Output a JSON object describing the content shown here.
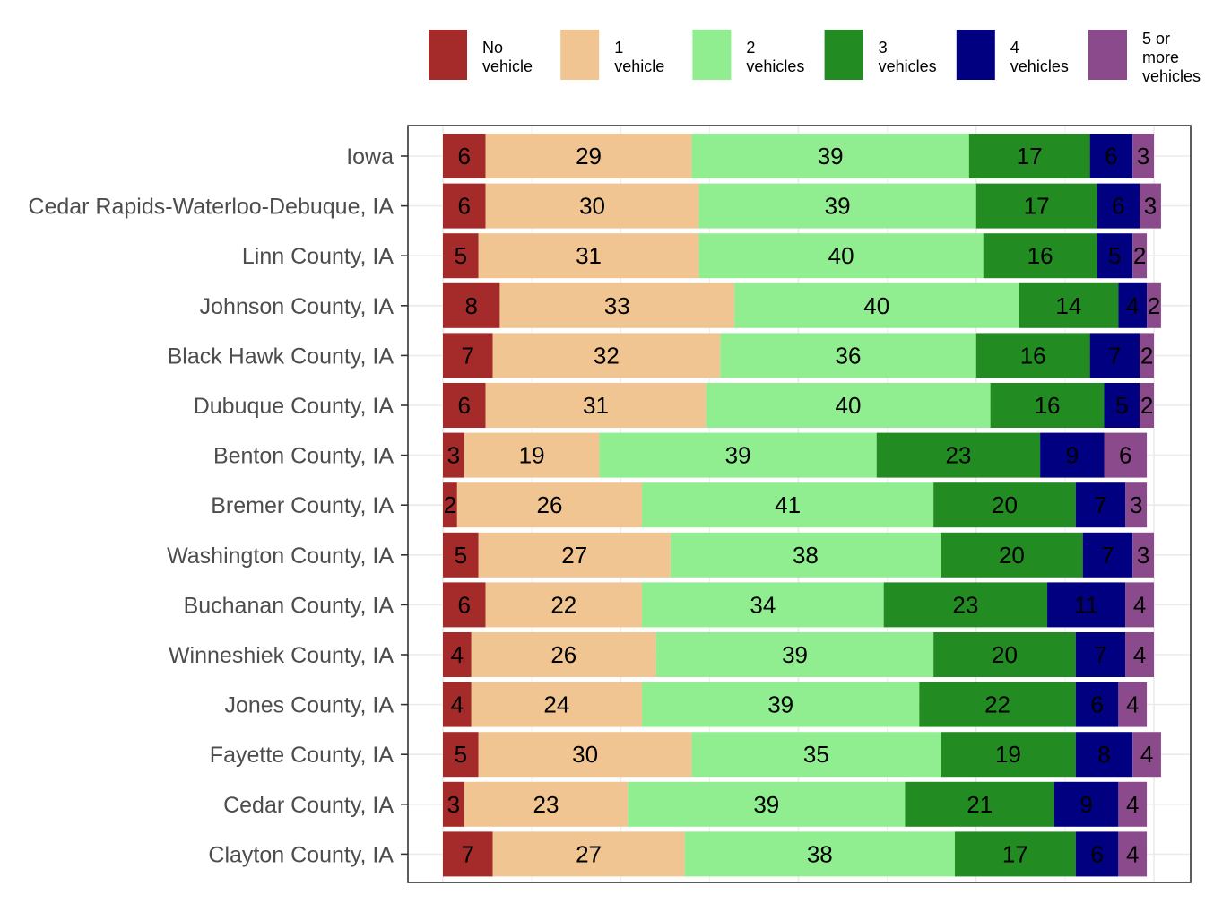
{
  "chart_data": {
    "type": "bar",
    "orientation": "horizontal",
    "stacked": true,
    "title": "",
    "xlabel": "",
    "ylabel": "",
    "xlim": [
      0,
      100
    ],
    "grid": true,
    "legend_position": "top-right",
    "categories": [
      "Iowa",
      "Cedar Rapids-Waterloo-Debuque, IA",
      "Linn County, IA",
      "Johnson County, IA",
      "Black Hawk County, IA",
      "Dubuque County, IA",
      "Benton County, IA",
      "Bremer County, IA",
      "Washington County, IA",
      "Buchanan County, IA",
      "Winneshiek County, IA",
      "Jones County, IA",
      "Fayette County, IA",
      "Cedar County, IA",
      "Clayton County, IA"
    ],
    "series": [
      {
        "name": "No vehicle",
        "legend_lines": [
          "No",
          "vehicle"
        ],
        "color": "#a52a2a",
        "values": [
          6,
          6,
          5,
          8,
          7,
          6,
          3,
          2,
          5,
          6,
          4,
          4,
          5,
          3,
          7
        ]
      },
      {
        "name": "1 vehicle",
        "legend_lines": [
          "1",
          "vehicle"
        ],
        "color": "#f0c592",
        "values": [
          29,
          30,
          31,
          33,
          32,
          31,
          19,
          26,
          27,
          22,
          26,
          24,
          30,
          23,
          27
        ]
      },
      {
        "name": "2 vehicles",
        "legend_lines": [
          "2",
          "vehicles"
        ],
        "color": "#90ee90",
        "values": [
          39,
          39,
          40,
          40,
          36,
          40,
          39,
          41,
          38,
          34,
          39,
          39,
          35,
          39,
          38
        ]
      },
      {
        "name": "3 vehicles",
        "legend_lines": [
          "3",
          "vehicles"
        ],
        "color": "#228b22",
        "values": [
          17,
          17,
          16,
          14,
          16,
          16,
          23,
          20,
          20,
          23,
          20,
          22,
          19,
          21,
          17
        ]
      },
      {
        "name": "4 vehicles",
        "legend_lines": [
          "4",
          "vehicles"
        ],
        "color": "#000080",
        "values": [
          6,
          6,
          5,
          4,
          7,
          5,
          9,
          7,
          7,
          11,
          7,
          6,
          8,
          9,
          6
        ]
      },
      {
        "name": "5 or more vehicles",
        "legend_lines": [
          "5 or",
          "more",
          "vehicles"
        ],
        "color": "#8b4a8b",
        "values": [
          3,
          3,
          2,
          2,
          2,
          2,
          6,
          3,
          3,
          4,
          4,
          4,
          4,
          4,
          4
        ]
      }
    ]
  }
}
